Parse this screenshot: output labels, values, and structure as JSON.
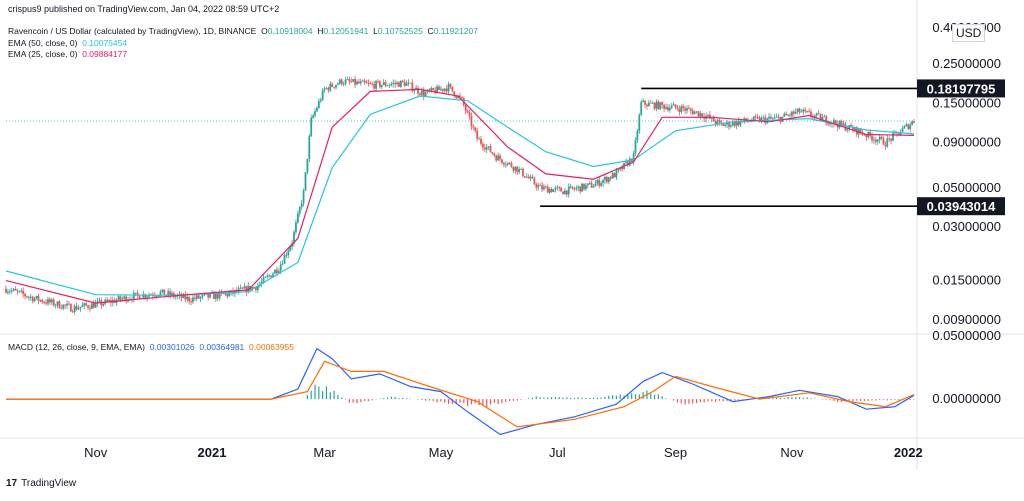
{
  "header": {
    "published": "crispus9 published on TradingView.com, Jan 04, 2022 08:59 UTC+2",
    "symbol": "Ravencoin / US Dollar (calculated by TradingView), 1D, BINANCE",
    "ohlc": {
      "o_label": "O",
      "o": "0.10918004",
      "h_label": "H",
      "h": "0.12051941",
      "l_label": "L",
      "l": "0.10752525",
      "c_label": "C",
      "c": "0.11921207"
    },
    "ema50": {
      "label": "EMA (50, close, 0)",
      "value": "0.10075454",
      "color": "#26c6da"
    },
    "ema25": {
      "label": "EMA (25, close, 0)",
      "value": "0.09884177",
      "color": "#e91e63"
    },
    "macd": {
      "label": "MACD (12, 26, close, 9, EMA, EMA)",
      "v1": "0.00301026",
      "v2": "0.00364981",
      "v3": "0.00063955"
    }
  },
  "currency": "USD",
  "footer": {
    "logo_mark": "17",
    "logo_text": "TradingView"
  },
  "chart_data": [
    {
      "type": "candlestick",
      "title": "",
      "scale": "log",
      "ylim": [
        0.0075,
        0.42
      ],
      "y_ticks": [
        "0.40000000",
        "0.25000000",
        "0.15000000",
        "0.09000000",
        "0.05000000",
        "0.03000000",
        "0.01500000",
        "0.00900000"
      ],
      "y_tick_values": [
        0.4,
        0.25,
        0.15,
        0.09,
        0.05,
        0.03,
        0.015,
        0.009
      ],
      "x_labels": [
        "Nov",
        "2021",
        "Mar",
        "May",
        "Jul",
        "Sep",
        "Nov",
        "2022"
      ],
      "x_label_dates": [
        "2020-11-01",
        "2021-01-01",
        "2021-03-01",
        "2021-05-01",
        "2021-07-01",
        "2021-09-01",
        "2021-11-01",
        "2022-01-01"
      ],
      "x_range": [
        "2020-09-15",
        "2022-01-04"
      ],
      "grid": false,
      "annotations": [
        {
          "type": "horizontal-line",
          "value": 0.18197795,
          "label": "0.18197795",
          "from": "2021-08-14",
          "to": "2022-01-04"
        },
        {
          "type": "horizontal-line",
          "value": 0.03943014,
          "label": "0.03943014",
          "from": "2021-06-22",
          "to": "2022-01-04"
        },
        {
          "type": "dotted-price-line",
          "value": 0.11921207
        }
      ],
      "series": [
        {
          "kind": "price-path",
          "color_up": "#26a69a",
          "color_down": "#ef5350",
          "points": [
            [
              "2020-09-15",
              0.0135
            ],
            [
              "2020-10-01",
              0.0118
            ],
            [
              "2020-10-20",
              0.0105
            ],
            [
              "2020-11-05",
              0.0112
            ],
            [
              "2020-11-20",
              0.0122
            ],
            [
              "2020-12-05",
              0.0128
            ],
            [
              "2020-12-20",
              0.0118
            ],
            [
              "2021-01-10",
              0.0126
            ],
            [
              "2021-01-25",
              0.014
            ],
            [
              "2021-02-05",
              0.0178
            ],
            [
              "2021-02-12",
              0.025
            ],
            [
              "2021-02-18",
              0.047
            ],
            [
              "2021-02-22",
              0.12
            ],
            [
              "2021-03-01",
              0.18
            ],
            [
              "2021-03-10",
              0.2
            ],
            [
              "2021-03-25",
              0.19
            ],
            [
              "2021-04-12",
              0.195
            ],
            [
              "2021-04-22",
              0.17
            ],
            [
              "2021-05-05",
              0.185
            ],
            [
              "2021-05-12",
              0.155
            ],
            [
              "2021-05-20",
              0.095
            ],
            [
              "2021-05-30",
              0.075
            ],
            [
              "2021-06-10",
              0.064
            ],
            [
              "2021-06-22",
              0.05
            ],
            [
              "2021-07-05",
              0.048
            ],
            [
              "2021-07-20",
              0.052
            ],
            [
              "2021-08-01",
              0.06
            ],
            [
              "2021-08-10",
              0.075
            ],
            [
              "2021-08-14",
              0.15
            ],
            [
              "2021-08-25",
              0.145
            ],
            [
              "2021-09-05",
              0.14
            ],
            [
              "2021-09-15",
              0.13
            ],
            [
              "2021-09-25",
              0.113
            ],
            [
              "2021-10-10",
              0.12
            ],
            [
              "2021-10-25",
              0.123
            ],
            [
              "2021-11-05",
              0.135
            ],
            [
              "2021-11-20",
              0.12
            ],
            [
              "2021-12-05",
              0.105
            ],
            [
              "2021-12-20",
              0.09
            ],
            [
              "2022-01-04",
              0.1192
            ]
          ]
        },
        {
          "name": "EMA (50, close, 0)",
          "kind": "line",
          "color": "#26c6da",
          "points": [
            [
              "2020-09-15",
              0.017
            ],
            [
              "2020-11-01",
              0.0125
            ],
            [
              "2020-12-15",
              0.0124
            ],
            [
              "2021-01-20",
              0.013
            ],
            [
              "2021-02-15",
              0.019
            ],
            [
              "2021-03-05",
              0.065
            ],
            [
              "2021-03-25",
              0.13
            ],
            [
              "2021-04-20",
              0.165
            ],
            [
              "2021-05-15",
              0.155
            ],
            [
              "2021-06-05",
              0.11
            ],
            [
              "2021-06-25",
              0.08
            ],
            [
              "2021-07-20",
              0.066
            ],
            [
              "2021-08-10",
              0.072
            ],
            [
              "2021-09-01",
              0.105
            ],
            [
              "2021-10-01",
              0.118
            ],
            [
              "2021-11-10",
              0.123
            ],
            [
              "2021-12-10",
              0.106
            ],
            [
              "2022-01-04",
              0.1008
            ]
          ]
        },
        {
          "name": "EMA (25, close, 0)",
          "kind": "line",
          "color": "#e91e63",
          "points": [
            [
              "2020-09-15",
              0.015
            ],
            [
              "2020-11-01",
              0.0112
            ],
            [
              "2020-12-15",
              0.0124
            ],
            [
              "2021-01-20",
              0.0133
            ],
            [
              "2021-02-15",
              0.026
            ],
            [
              "2021-03-05",
              0.11
            ],
            [
              "2021-03-25",
              0.175
            ],
            [
              "2021-04-20",
              0.18
            ],
            [
              "2021-05-10",
              0.165
            ],
            [
              "2021-06-05",
              0.085
            ],
            [
              "2021-06-25",
              0.06
            ],
            [
              "2021-07-20",
              0.056
            ],
            [
              "2021-08-10",
              0.07
            ],
            [
              "2021-08-25",
              0.125
            ],
            [
              "2021-09-20",
              0.125
            ],
            [
              "2021-10-20",
              0.118
            ],
            [
              "2021-11-10",
              0.128
            ],
            [
              "2021-12-10",
              0.1
            ],
            [
              "2022-01-04",
              0.0988
            ]
          ]
        }
      ]
    },
    {
      "type": "line",
      "title": "",
      "ylim": [
        -0.03,
        0.05
      ],
      "y_ticks": [
        "0.05000000",
        "0.00000000"
      ],
      "y_tick_values": [
        0.05,
        0.0
      ],
      "series": [
        {
          "name": "MACD",
          "color": "#2962ff",
          "points": [
            [
              "2020-09-15",
              0.0
            ],
            [
              "2021-02-01",
              0.0
            ],
            [
              "2021-02-15",
              0.008
            ],
            [
              "2021-02-25",
              0.04
            ],
            [
              "2021-03-05",
              0.032
            ],
            [
              "2021-03-15",
              0.016
            ],
            [
              "2021-03-30",
              0.02
            ],
            [
              "2021-04-15",
              0.01
            ],
            [
              "2021-05-01",
              0.006
            ],
            [
              "2021-05-15",
              -0.01
            ],
            [
              "2021-06-01",
              -0.028
            ],
            [
              "2021-06-20",
              -0.02
            ],
            [
              "2021-07-10",
              -0.014
            ],
            [
              "2021-08-01",
              -0.004
            ],
            [
              "2021-08-15",
              0.014
            ],
            [
              "2021-08-25",
              0.021
            ],
            [
              "2021-09-10",
              0.012
            ],
            [
              "2021-10-01",
              -0.002
            ],
            [
              "2021-10-20",
              0.002
            ],
            [
              "2021-11-05",
              0.007
            ],
            [
              "2021-11-25",
              0.002
            ],
            [
              "2021-12-10",
              -0.008
            ],
            [
              "2021-12-25",
              -0.006
            ],
            [
              "2022-01-04",
              0.003
            ]
          ]
        },
        {
          "name": "Signal",
          "color": "#ff6d00",
          "points": [
            [
              "2020-09-15",
              0.0
            ],
            [
              "2021-02-01",
              0.0
            ],
            [
              "2021-02-20",
              0.006
            ],
            [
              "2021-03-01",
              0.03
            ],
            [
              "2021-03-15",
              0.022
            ],
            [
              "2021-04-01",
              0.022
            ],
            [
              "2021-04-25",
              0.01
            ],
            [
              "2021-05-20",
              -0.002
            ],
            [
              "2021-06-10",
              -0.022
            ],
            [
              "2021-07-10",
              -0.016
            ],
            [
              "2021-08-05",
              -0.006
            ],
            [
              "2021-08-20",
              0.006
            ],
            [
              "2021-09-01",
              0.018
            ],
            [
              "2021-09-20",
              0.01
            ],
            [
              "2021-10-15",
              0.0
            ],
            [
              "2021-11-10",
              0.005
            ],
            [
              "2021-12-01",
              -0.002
            ],
            [
              "2021-12-20",
              -0.006
            ],
            [
              "2022-01-04",
              0.0036
            ]
          ]
        }
      ],
      "histogram": {
        "color_pos": "#26a69a",
        "color_neg": "#ef5350",
        "points": [
          [
            "2021-02-20",
            0.004
          ],
          [
            "2021-02-25",
            0.012
          ],
          [
            "2021-03-05",
            0.008
          ],
          [
            "2021-03-15",
            -0.004
          ],
          [
            "2021-04-05",
            0.002
          ],
          [
            "2021-05-10",
            -0.004
          ],
          [
            "2021-05-25",
            -0.006
          ],
          [
            "2021-06-20",
            0.002
          ],
          [
            "2021-07-20",
            0.001
          ],
          [
            "2021-08-18",
            0.006
          ],
          [
            "2021-09-05",
            -0.004
          ],
          [
            "2021-10-01",
            -0.001
          ],
          [
            "2021-11-05",
            0.002
          ],
          [
            "2021-11-25",
            -0.002
          ],
          [
            "2021-12-15",
            -0.001
          ],
          [
            "2022-01-04",
            -0.0006
          ]
        ]
      }
    }
  ]
}
